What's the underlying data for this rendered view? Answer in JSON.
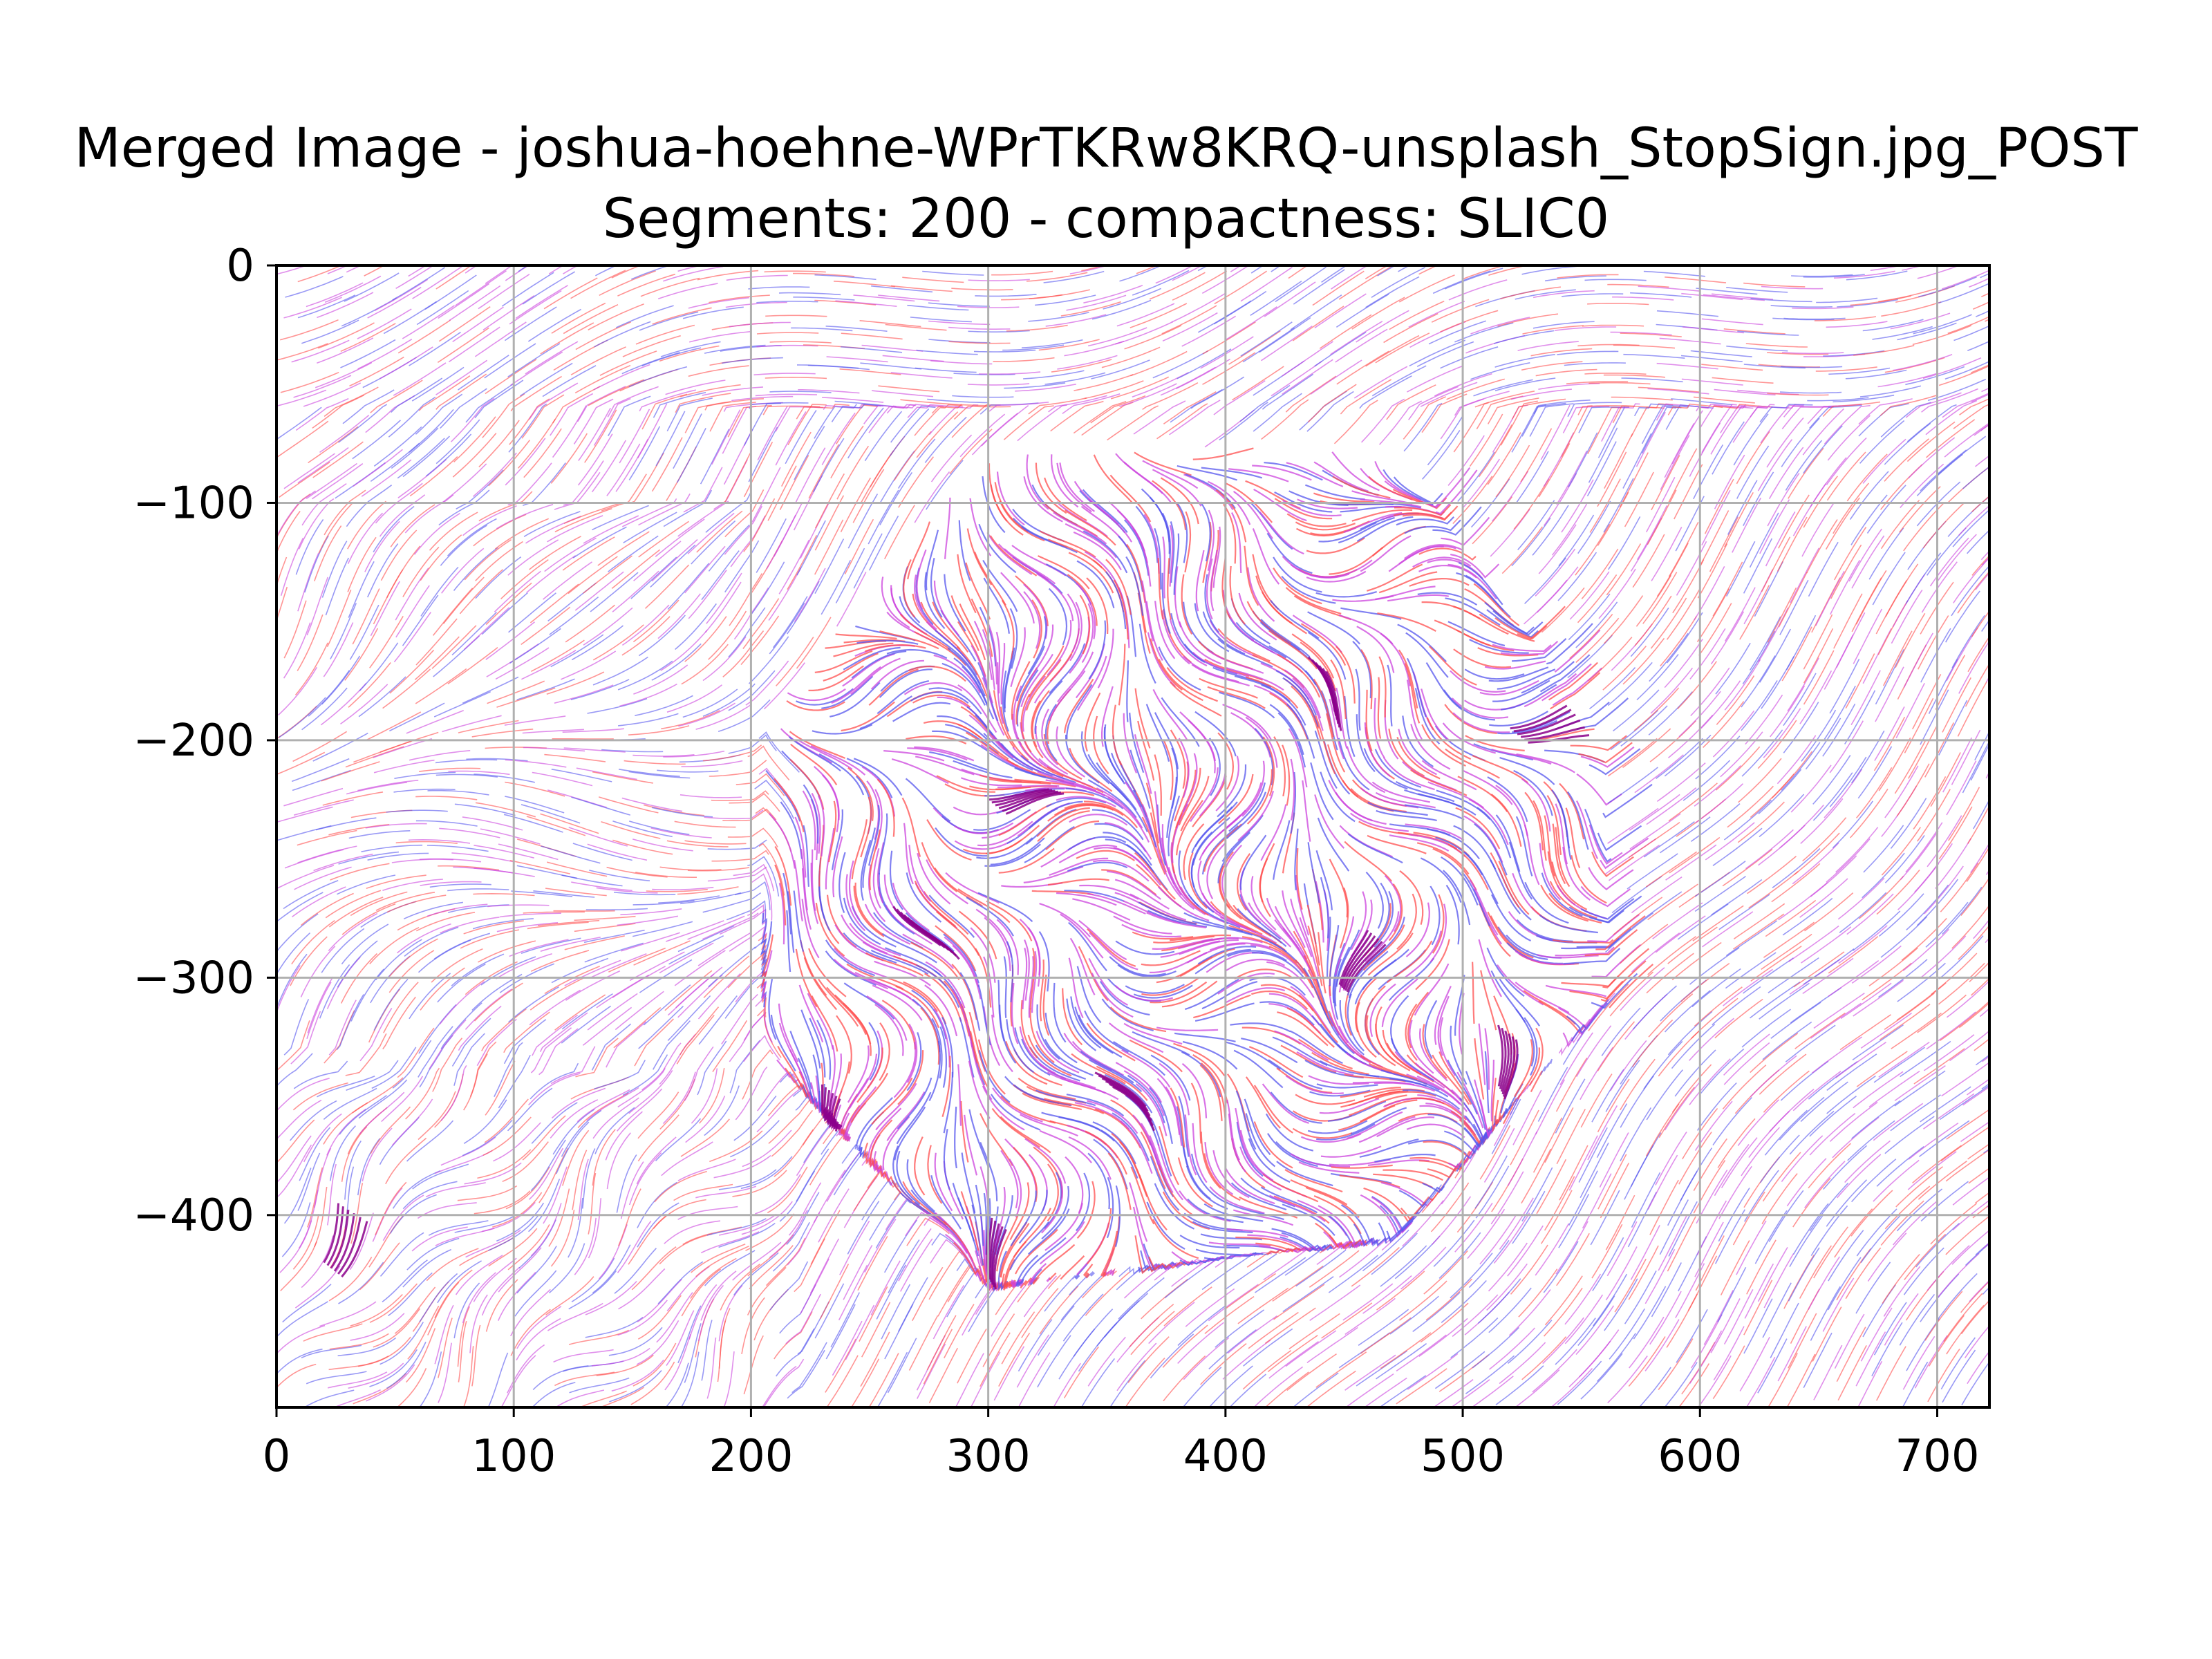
{
  "chart_data": {
    "type": "streamplot",
    "title": "Merged Image - joshua-hoehne-WPrTKRw8KRQ-unsplash_StopSign.jpg_POST",
    "subtitle": "Segments: 200 - compactness: SLIC0",
    "xlabel": "",
    "ylabel": "",
    "xlim": [
      0,
      722
    ],
    "ylim": [
      -481,
      0
    ],
    "xticks": [
      0,
      100,
      200,
      300,
      400,
      500,
      600,
      700
    ],
    "yticks": [
      0,
      -100,
      -200,
      -300,
      -400
    ],
    "xtick_labels": [
      "0",
      "100",
      "200",
      "300",
      "400",
      "500",
      "600",
      "700"
    ],
    "ytick_labels": [
      "0",
      "−100",
      "−200",
      "−300",
      "−400"
    ],
    "grid": true,
    "series_colors": [
      "#ff4d4d",
      "#5555ee",
      "#cc44dd",
      "#8b008b"
    ],
    "regions": {
      "octagon": [
        [
          300,
          -75
        ],
        [
          470,
          -78
        ],
        [
          560,
          -200
        ],
        [
          560,
          -310
        ],
        [
          470,
          -410
        ],
        [
          300,
          -430
        ],
        [
          205,
          -330
        ],
        [
          205,
          -190
        ]
      ]
    }
  }
}
